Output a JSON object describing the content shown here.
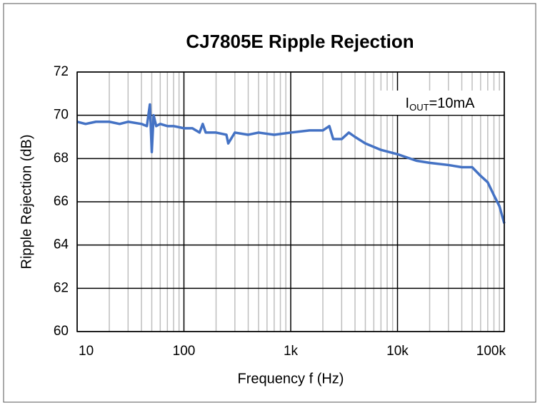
{
  "chart_data": {
    "type": "line",
    "title": "CJ7805E Ripple Rejection",
    "x_label": "Frequency f (Hz)",
    "y_label": "Ripple Rejection (dB)",
    "annotation": [
      "I",
      "OUT",
      "=10mA"
    ],
    "x_scale": "log",
    "xlim": [
      10,
      100000
    ],
    "xticks": [
      10,
      100,
      {
        "value": 1000,
        "label": "1k"
      },
      {
        "value": 10000,
        "label": "10k"
      },
      {
        "value": 100000,
        "label": "100k"
      }
    ],
    "xminor_ticks": [
      20,
      30,
      40,
      50,
      60,
      70,
      80,
      90,
      200,
      300,
      400,
      500,
      600,
      700,
      800,
      900,
      2000,
      3000,
      4000,
      5000,
      6000,
      7000,
      8000,
      9000,
      20000,
      30000,
      40000,
      50000,
      60000,
      70000,
      80000,
      90000
    ],
    "ylim": [
      60,
      72
    ],
    "yticks": [
      60,
      62,
      64,
      66,
      68,
      70,
      72
    ],
    "grid": true,
    "series": [
      {
        "color": "#4472c4",
        "x": [
          10,
          12,
          15,
          20,
          25,
          30,
          40,
          45,
          48,
          50,
          52,
          55,
          60,
          70,
          80,
          100,
          120,
          140,
          150,
          160,
          200,
          250,
          260,
          300,
          400,
          500,
          700,
          1000,
          1500,
          2000,
          2300,
          2500,
          3000,
          3500,
          4000,
          5000,
          7000,
          10000,
          15000,
          20000,
          30000,
          40000,
          50000,
          60000,
          70000,
          80000,
          90000,
          100000
        ],
        "values": [
          69.7,
          69.6,
          69.7,
          69.7,
          69.6,
          69.7,
          69.6,
          69.5,
          70.5,
          68.3,
          70.0,
          69.5,
          69.6,
          69.5,
          69.5,
          69.4,
          69.4,
          69.2,
          69.6,
          69.2,
          69.2,
          69.1,
          68.7,
          69.2,
          69.1,
          69.2,
          69.1,
          69.2,
          69.3,
          69.3,
          69.5,
          68.9,
          68.9,
          69.2,
          69.0,
          68.7,
          68.4,
          68.2,
          67.9,
          67.8,
          67.7,
          67.6,
          67.6,
          67.2,
          66.9,
          66.3,
          65.8,
          65.0
        ]
      }
    ]
  }
}
